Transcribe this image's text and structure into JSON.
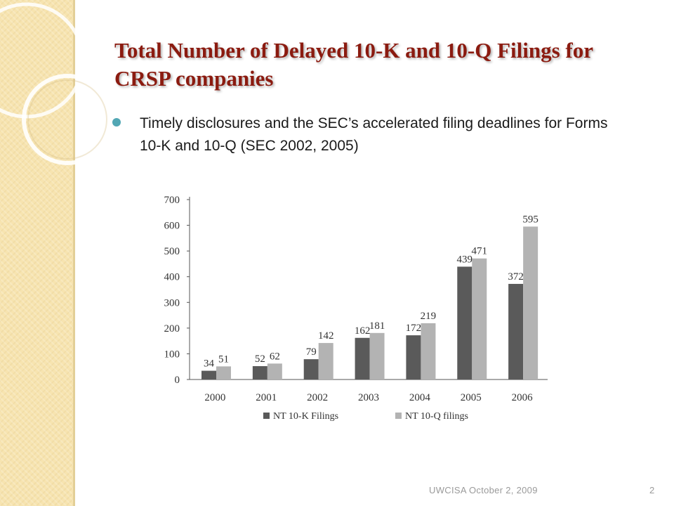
{
  "slide": {
    "title": "Total Number of Delayed 10-K and 10-Q Filings for CRSP companies",
    "bullet": "Timely disclosures and the SEC’s accelerated filing deadlines for Forms 10-K and 10-Q (SEC 2002, 2005)",
    "footer": "UWCISA October 2, 2009",
    "page_number": "2"
  },
  "colors": {
    "title": "#8b1b10",
    "bullet": "#52a7b4",
    "side_panel": "#f7e4b0",
    "series_10k": "#5a5a5a",
    "series_10q": "#b3b3b3"
  },
  "chart_data": {
    "type": "bar",
    "categories": [
      "2000",
      "2001",
      "2002",
      "2003",
      "2004",
      "2005",
      "2006"
    ],
    "series": [
      {
        "name": "NT 10-K Filings",
        "values": [
          34,
          52,
          79,
          162,
          172,
          439,
          372
        ]
      },
      {
        "name": "NT 10-Q filings",
        "values": [
          51,
          62,
          142,
          181,
          219,
          471,
          595
        ]
      }
    ],
    "ylim": [
      0,
      700
    ],
    "yticks": [
      0,
      100,
      200,
      300,
      400,
      500,
      600,
      700
    ],
    "grid": false,
    "legend": "bottom",
    "data_labels": true
  }
}
